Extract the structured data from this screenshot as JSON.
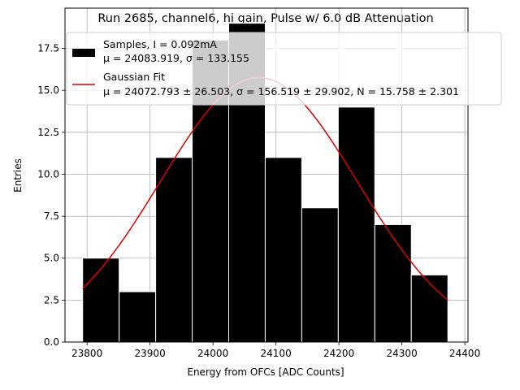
{
  "chart_data": {
    "type": "bar",
    "title": "Run 2685, channel6, hi gain, Pulse w/ 6.0 dB Attenuation",
    "xlabel": "Energy from OFCs [ADC Counts]",
    "ylabel": "Entries",
    "xlim": [
      23765,
      24405
    ],
    "ylim": [
      0,
      19.9
    ],
    "xticks": [
      23800,
      23900,
      24000,
      24100,
      24200,
      24300,
      24400
    ],
    "yticks": [
      0.0,
      2.5,
      5.0,
      7.5,
      10.0,
      12.5,
      15.0,
      17.5
    ],
    "ytick_labels": [
      "0.0",
      "2.5",
      "5.0",
      "7.5",
      "10.0",
      "12.5",
      "15.0",
      "17.5"
    ],
    "grid": true,
    "bins": {
      "edges": [
        23793,
        23851,
        23909,
        23967,
        24025,
        24083,
        24141,
        24199,
        24257,
        24315,
        24373
      ],
      "counts": [
        5,
        3,
        11,
        18,
        19,
        11,
        8,
        14,
        7,
        4
      ],
      "color": "#000000",
      "edge_color": "#ffffff"
    },
    "fit": {
      "mu": 24072.793,
      "sigma": 156.519,
      "N": 15.758,
      "x_range": [
        23793,
        24373
      ],
      "color": "#e00000"
    },
    "legend": {
      "placement": "upper-right",
      "samples": {
        "line1": "Samples, I = 0.092mA",
        "line2": "μ = 24083.919, σ = 133.155"
      },
      "fit": {
        "line1": "Gaussian Fit",
        "line2": "μ = 24072.793 ± 26.503, σ = 156.519 ± 29.902, N = 15.758 ± 2.301"
      }
    }
  }
}
